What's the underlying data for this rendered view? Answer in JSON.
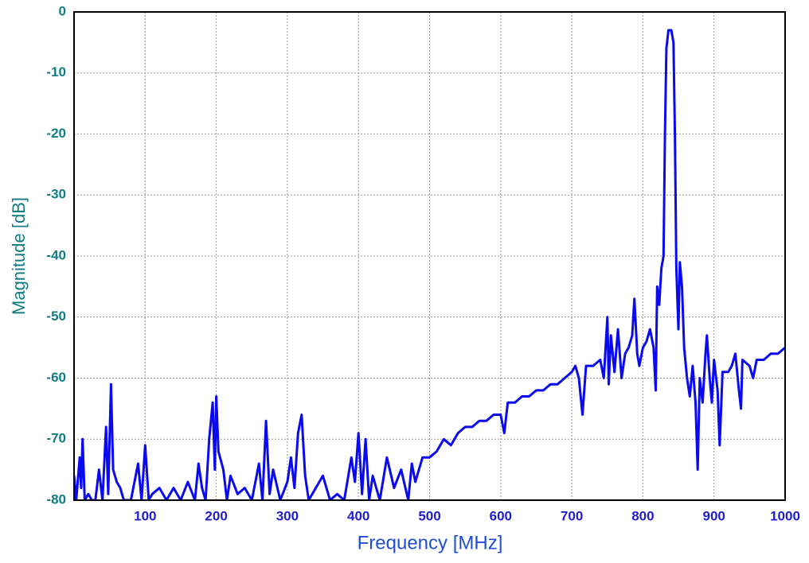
{
  "chart_data": {
    "type": "line",
    "x_label": "Frequency [MHz]",
    "y_label": "Magnitude [dB]",
    "color": "#0a0af0",
    "grid": true,
    "xlim": [
      0,
      1000
    ],
    "xticks": [
      100,
      200,
      300,
      400,
      500,
      600,
      700,
      800,
      900,
      1000
    ],
    "ylim": [
      -80,
      0
    ],
    "yticks": [
      0,
      -10,
      -20,
      -30,
      -40,
      -50,
      -60,
      -70,
      -80
    ],
    "x": [
      0,
      3,
      8,
      10,
      12,
      15,
      20,
      25,
      30,
      35,
      40,
      45,
      48,
      52,
      55,
      60,
      65,
      70,
      80,
      90,
      95,
      100,
      105,
      110,
      120,
      130,
      140,
      150,
      160,
      170,
      175,
      180,
      185,
      190,
      195,
      198,
      200,
      203,
      210,
      215,
      220,
      230,
      240,
      250,
      260,
      265,
      270,
      275,
      280,
      290,
      300,
      305,
      310,
      315,
      320,
      325,
      330,
      340,
      350,
      360,
      370,
      380,
      390,
      395,
      400,
      405,
      410,
      415,
      420,
      430,
      440,
      450,
      460,
      470,
      475,
      480,
      490,
      500,
      510,
      520,
      530,
      540,
      550,
      560,
      570,
      580,
      590,
      600,
      605,
      610,
      620,
      630,
      640,
      650,
      660,
      670,
      680,
      690,
      700,
      705,
      710,
      715,
      720,
      730,
      740,
      745,
      750,
      752,
      755,
      760,
      765,
      770,
      775,
      780,
      785,
      788,
      792,
      795,
      800,
      805,
      810,
      815,
      818,
      820,
      823,
      826,
      829,
      831,
      833,
      836,
      840,
      843,
      845,
      847,
      850,
      852,
      855,
      858,
      862,
      866,
      870,
      874,
      877,
      880,
      884,
      888,
      890,
      894,
      897,
      900,
      905,
      908,
      912,
      920,
      925,
      930,
      935,
      938,
      940,
      950,
      955,
      960,
      970,
      980,
      990,
      1000
    ],
    "values": [
      -76,
      -80,
      -73,
      -78,
      -70,
      -80,
      -79,
      -80,
      -80,
      -75,
      -80,
      -68,
      -79,
      -61,
      -75,
      -77,
      -78,
      -80,
      -80,
      -74,
      -80,
      -71,
      -80,
      -79,
      -78,
      -80,
      -78,
      -80,
      -77,
      -80,
      -74,
      -78,
      -80,
      -70,
      -64,
      -75,
      -63,
      -72,
      -75,
      -80,
      -76,
      -79,
      -78,
      -80,
      -74,
      -80,
      -67,
      -79,
      -75,
      -80,
      -77,
      -73,
      -78,
      -69,
      -66,
      -76,
      -80,
      -78,
      -76,
      -80,
      -79,
      -80,
      -73,
      -77,
      -69,
      -79,
      -70,
      -80,
      -76,
      -80,
      -73,
      -78,
      -75,
      -80,
      -74,
      -77,
      -73,
      -73,
      -72,
      -70,
      -71,
      -69,
      -68,
      -68,
      -67,
      -67,
      -66,
      -66,
      -69,
      -64,
      -64,
      -63,
      -63,
      -62,
      -62,
      -61,
      -61,
      -60,
      -59,
      -58,
      -60,
      -66,
      -58,
      -58,
      -57,
      -60,
      -50,
      -61,
      -53,
      -59,
      -52,
      -60,
      -56,
      -55,
      -53,
      -47,
      -56,
      -58,
      -55,
      -54,
      -52,
      -55,
      -62,
      -45,
      -48,
      -42,
      -40,
      -20,
      -6,
      -3,
      -3,
      -5,
      -20,
      -42,
      -52,
      -41,
      -45,
      -55,
      -60,
      -63,
      -58,
      -64,
      -75,
      -60,
      -64,
      -56,
      -53,
      -60,
      -64,
      -57,
      -62,
      -71,
      -59,
      -59,
      -58,
      -56,
      -62,
      -65,
      -57,
      -58,
      -60,
      -57,
      -57,
      -56,
      -56,
      -55
    ]
  }
}
